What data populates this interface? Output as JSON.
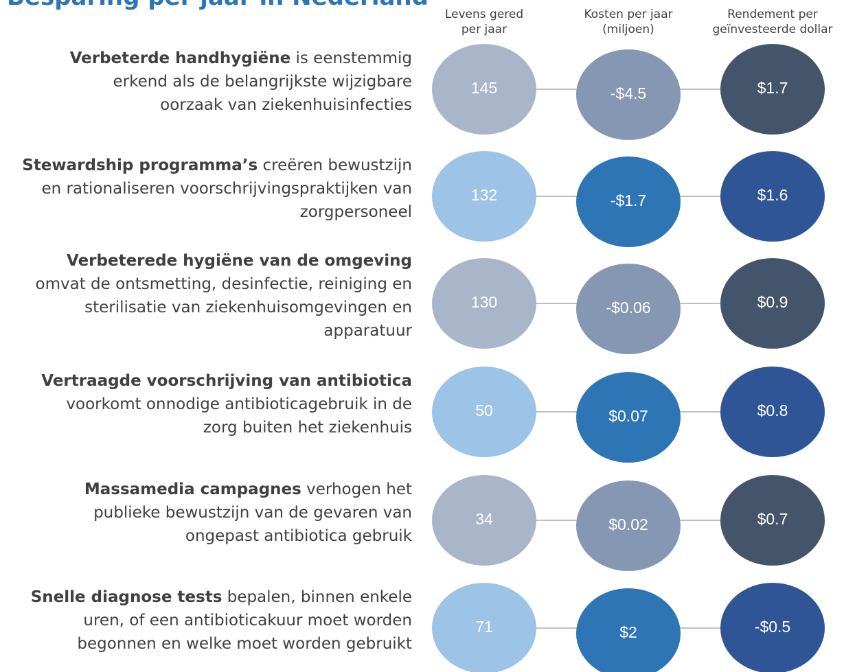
{
  "title": "Besparing per jaar in Nederland",
  "headers": [
    [
      "Levens gered",
      "per jaar"
    ],
    [
      "Kosten per jaar",
      "(miljoen)"
    ],
    [
      "Rendement per",
      "geïnvesteerde dollar"
    ]
  ],
  "rows": [
    {
      "lines": [
        [
          {
            "text": "Verbeterde handhygiëne",
            "bold": true
          },
          {
            "text": " is eenstemmig"
          }
        ],
        [
          {
            "text": "erkend als de belangrijkste wijzigbare"
          }
        ],
        [
          {
            "text": "oorzaak van ziekenhuisinfecties"
          }
        ]
      ],
      "values": [
        "145",
        "-$4.5",
        "$1.7"
      ]
    },
    {
      "lines": [
        [
          {
            "text": "Stewardship programma’s",
            "bold": true
          },
          {
            "text": " creëren bewustzijn"
          }
        ],
        [
          {
            "text": "en rationaliseren voorschrijvingspraktijken van"
          }
        ],
        [
          {
            "text": "zorgpersoneel"
          }
        ]
      ],
      "values": [
        "132",
        "-$1.7",
        "$1.6"
      ]
    },
    {
      "lines": [
        [
          {
            "text": "Verbeterede hygiëne van de omgeving",
            "bold": true
          }
        ],
        [
          {
            "text": "omvat de ontsmetting, desinfectie, reiniging en"
          }
        ],
        [
          {
            "text": "sterilisatie van ziekenhuisomgevingen en"
          }
        ],
        [
          {
            "text": "apparatuur"
          }
        ]
      ],
      "values": [
        "130",
        "-$0.06",
        "$0.9"
      ]
    },
    {
      "lines": [
        [
          {
            "text": "Vertraagde voorschrijving van antibiotica",
            "bold": true
          }
        ],
        [
          {
            "text": "voorkomt onnodige antibioticagebruik in de"
          }
        ],
        [
          {
            "text": "zorg buiten het ziekenhuis"
          }
        ]
      ],
      "values": [
        "50",
        "$0.07",
        "$0.8"
      ]
    },
    {
      "lines": [
        [
          {
            "text": "Massamedia campagnes",
            "bold": true
          },
          {
            "text": " verhogen het"
          }
        ],
        [
          {
            "text": "publieke bewustzijn van de gevaren van"
          }
        ],
        [
          {
            "text": "ongepast antibiotica gebruik"
          }
        ]
      ],
      "values": [
        "34",
        "$0.02",
        "$0.7"
      ]
    },
    {
      "lines": [
        [
          {
            "text": "Snelle diagnose tests",
            "bold": true
          },
          {
            "text": " bepalen, binnen enkele"
          }
        ],
        [
          {
            "text": "uren, of een antibioticakuur moet worden"
          }
        ],
        [
          {
            "text": "begonnen en welke moet worden gebruikt"
          }
        ]
      ],
      "values": [
        "71",
        "$2",
        "-$0.5"
      ]
    }
  ],
  "palettes": [
    [
      "#a9b6ca",
      "#8597b2",
      "#44546a"
    ],
    [
      "#9dc3e6",
      "#2e75b6",
      "#2f5597"
    ]
  ]
}
